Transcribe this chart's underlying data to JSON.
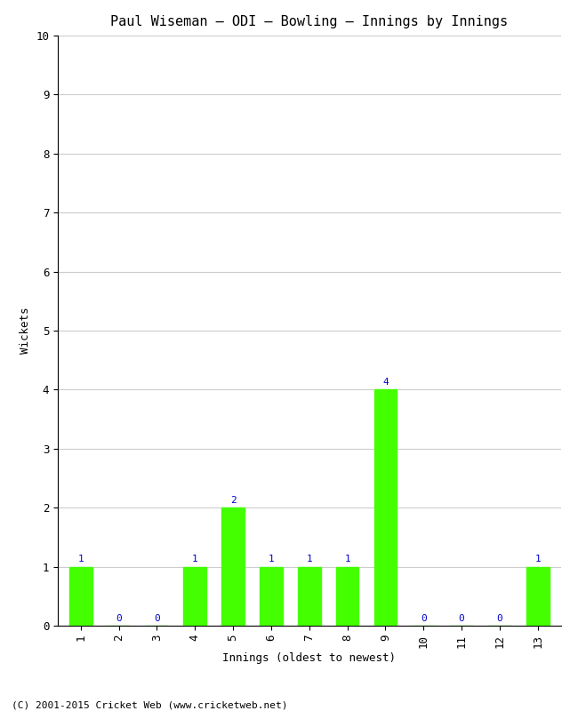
{
  "title": "Paul Wiseman – ODI – Bowling – Innings by Innings",
  "xlabel": "Innings (oldest to newest)",
  "ylabel": "Wickets",
  "categories": [
    "1",
    "2",
    "3",
    "4",
    "5",
    "6",
    "7",
    "8",
    "9",
    "10",
    "11",
    "12",
    "13"
  ],
  "values": [
    1,
    0,
    0,
    1,
    2,
    1,
    1,
    1,
    4,
    0,
    0,
    0,
    1
  ],
  "bar_color": "#44ff00",
  "bar_edge_color": "#44ff00",
  "label_color": "#0000cc",
  "ylim": [
    0,
    10
  ],
  "yticks": [
    0,
    1,
    2,
    3,
    4,
    5,
    6,
    7,
    8,
    9,
    10
  ],
  "background_color": "#ffffff",
  "grid_color": "#cccccc",
  "title_fontsize": 11,
  "axis_label_fontsize": 9,
  "tick_fontsize": 9,
  "annotation_fontsize": 8,
  "footer_text": "(C) 2001-2015 Cricket Web (www.cricketweb.net)",
  "footer_fontsize": 8
}
